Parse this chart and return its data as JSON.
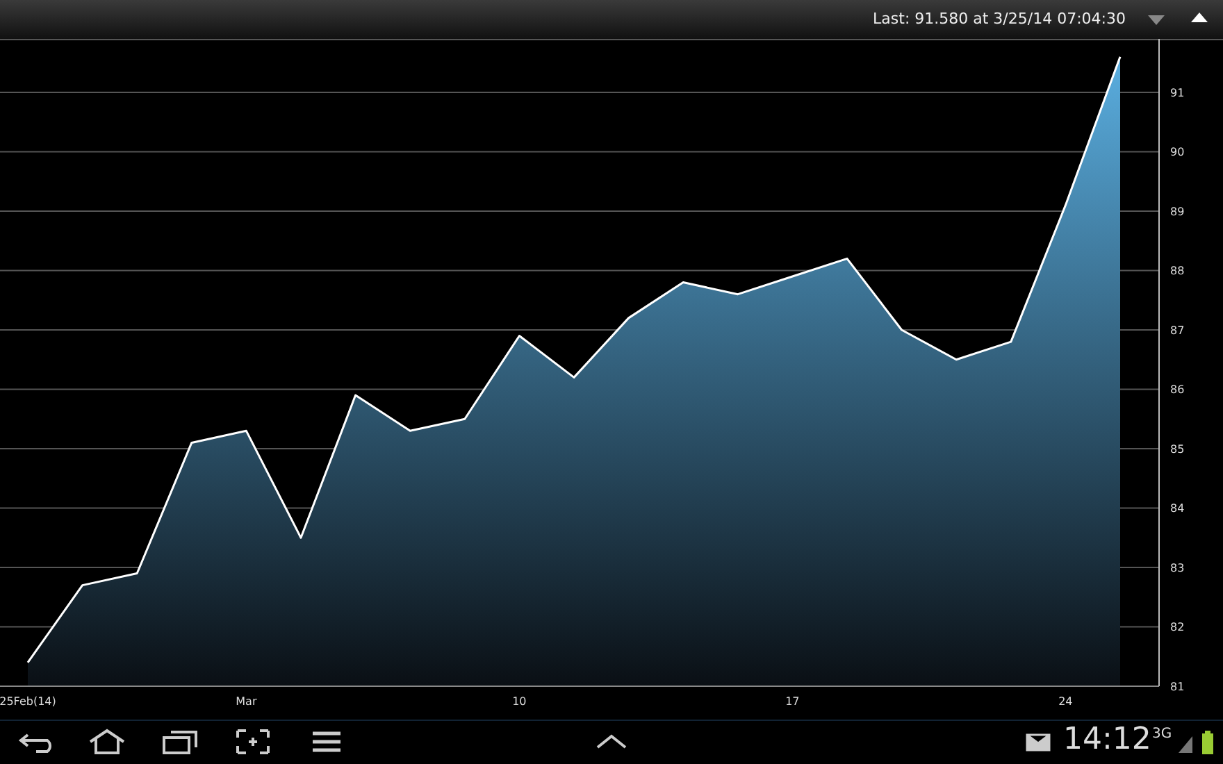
{
  "chart_data": {
    "type": "area",
    "categories": [
      "25Feb(14)",
      null,
      null,
      null,
      "Mar",
      null,
      null,
      null,
      null,
      "10",
      null,
      null,
      null,
      null,
      "17",
      null,
      null,
      null,
      null,
      "24",
      null
    ],
    "series": [
      {
        "color": "#ffffff",
        "values": [
          81.4,
          82.7,
          82.9,
          85.1,
          85.3,
          83.5,
          85.9,
          85.3,
          85.5,
          86.9,
          86.2,
          87.2,
          87.8,
          87.6,
          87.9,
          88.2,
          87.0,
          86.5,
          86.8,
          89.1,
          91.6
        ]
      }
    ],
    "ylim": [
      81,
      91.9
    ],
    "yticks": [
      81,
      82,
      83,
      84,
      85,
      86,
      87,
      88,
      89,
      90,
      91
    ],
    "grid": "y",
    "annotations": [
      "Last: 91.580 at 3/25/14 07:04:30",
      "14:12",
      "3G"
    ]
  }
}
